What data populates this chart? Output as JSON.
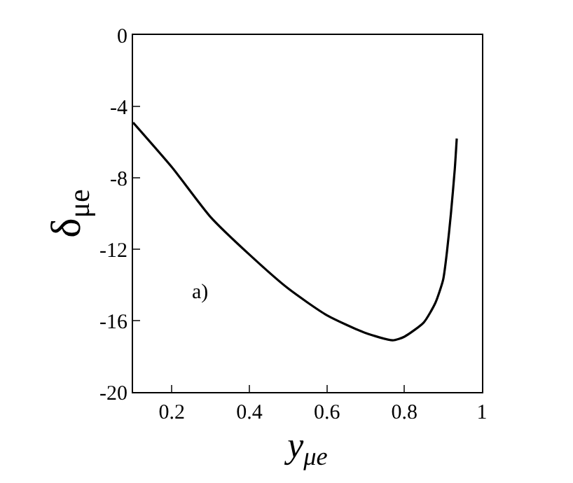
{
  "chart_data": {
    "type": "line",
    "xlabel": "y$_{μe}$",
    "ylabel": "δ$_{μe}$",
    "annotations": [
      "a)"
    ],
    "x": [
      0.1,
      0.2,
      0.3,
      0.4,
      0.5,
      0.6,
      0.7,
      0.77,
      0.8,
      0.85,
      0.88,
      0.9,
      0.91,
      0.92,
      0.93,
      0.935
    ],
    "series": [
      {
        "color": "#000000",
        "values": [
          -4.9,
          -7.4,
          -10.2,
          -12.3,
          -14.2,
          -15.7,
          -16.7,
          -17.1,
          -16.9,
          -16.1,
          -15.0,
          -13.7,
          -12.1,
          -10.0,
          -7.5,
          -5.8
        ]
      }
    ],
    "xlim": [
      0.1,
      1
    ],
    "xticks": [
      0.2,
      0.4,
      0.6,
      0.8,
      1
    ],
    "ylim": [
      -20,
      0
    ],
    "yticks": [
      -20,
      -16,
      -12,
      -8,
      -4,
      0
    ],
    "marker": "none",
    "line_style": "solid"
  }
}
